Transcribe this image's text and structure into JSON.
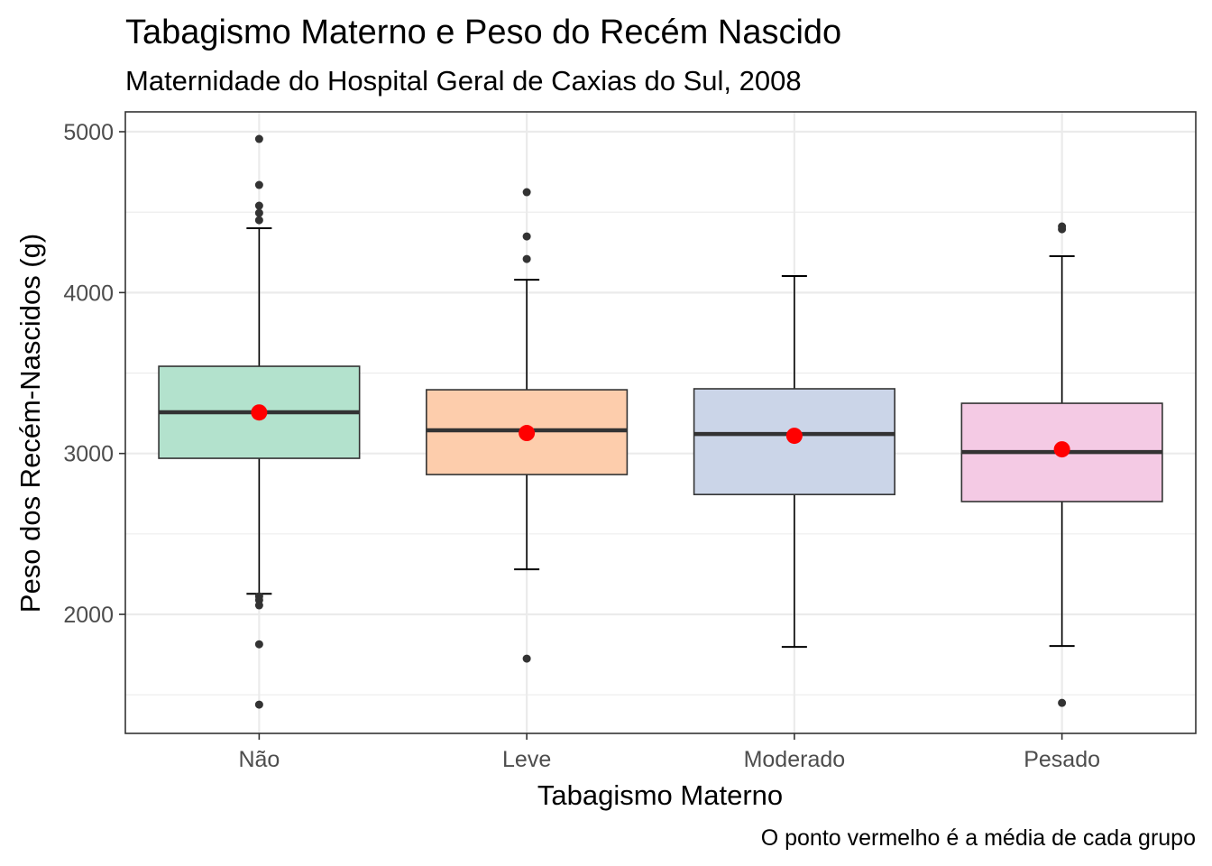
{
  "chart_data": {
    "type": "box",
    "title": "Tabagismo Materno e Peso do Recém Nascido",
    "subtitle": "Maternidade do Hospital Geral de Caxias do Sul, 2008",
    "xlabel": "Tabagismo Materno",
    "ylabel": "Peso dos Recém-Nascidos (g)",
    "caption": "O ponto vermelho é a média de cada grupo",
    "ylim": [
      1330,
      5120
    ],
    "yticks": [
      2000,
      3000,
      4000,
      5000
    ],
    "ytick_labels": [
      "2000",
      "3000",
      "4000",
      "5000"
    ],
    "grid": true,
    "categories": [
      "Não",
      "Leve",
      "Moderado",
      "Pesado"
    ],
    "groups": [
      {
        "name": "Não",
        "fill": "#B3E2CD",
        "whisker_low": 2128,
        "q1": 2970,
        "median": 3256,
        "q3": 3542,
        "whisker_high": 4400,
        "mean": 3255,
        "outliers": [
          4955,
          4669,
          4540,
          4495,
          4450,
          2112,
          2089,
          2056,
          1814,
          1439
        ]
      },
      {
        "name": "Leve",
        "fill": "#FDCDAC",
        "whisker_low": 2280,
        "q1": 2869,
        "median": 3144,
        "q3": 3396,
        "whisker_high": 4080,
        "mean": 3127,
        "outliers": [
          4624,
          4349,
          4209,
          1725
        ]
      },
      {
        "name": "Moderado",
        "fill": "#CBD5E8",
        "whisker_low": 1798,
        "q1": 2745,
        "median": 3121,
        "q3": 3402,
        "whisker_high": 4103,
        "mean": 3110,
        "outliers": []
      },
      {
        "name": "Pesado",
        "fill": "#F4CAE4",
        "whisker_low": 1803,
        "q1": 2701,
        "median": 3009,
        "q3": 3312,
        "whisker_high": 4226,
        "mean": 3026,
        "outliers": [
          4411,
          4394,
          1450
        ]
      }
    ],
    "mean_color": "#FF0000",
    "outlier_color": "#333333"
  }
}
